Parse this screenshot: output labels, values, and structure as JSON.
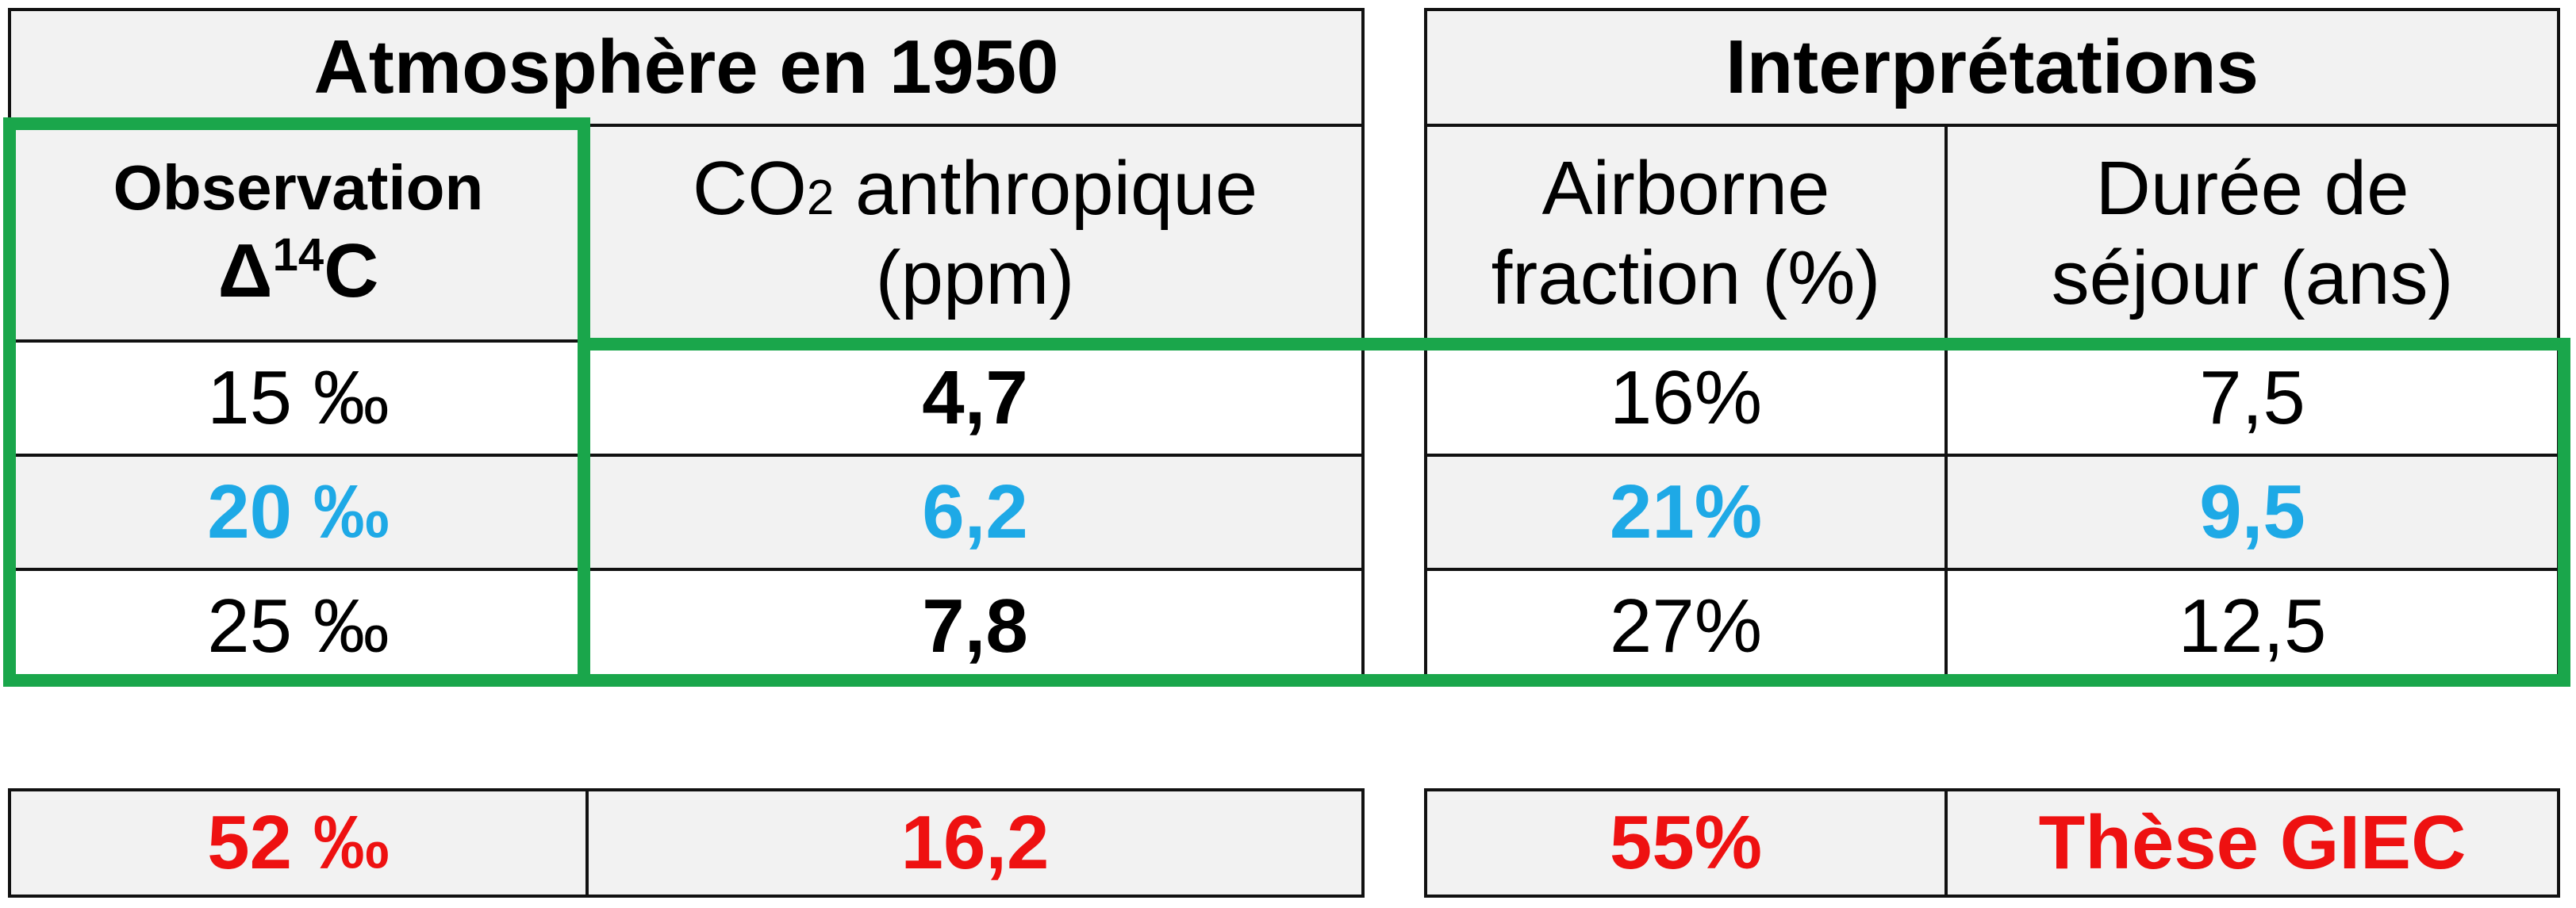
{
  "left_table": {
    "title": "Atmosphère en 1950",
    "col1_header_line1": "Observation",
    "col1_header_delta": "Δ",
    "col1_header_sup": "14",
    "col1_header_c": "C",
    "col2_header_co": "CO",
    "col2_header_sub": "2",
    "col2_header_rest": " anthropique",
    "col2_header_line2": "(ppm)",
    "rows": [
      {
        "obs": "15 ‰",
        "co2": "4,7"
      },
      {
        "obs": "20 ‰",
        "co2": "6,2"
      },
      {
        "obs": "25 ‰",
        "co2": "7,8"
      }
    ]
  },
  "right_table": {
    "title": "Interprétations",
    "col1_header_line1": "Airborne",
    "col1_header_line2": "fraction (%)",
    "col2_header_line1": "Durée de",
    "col2_header_line2": "séjour (ans)",
    "rows": [
      {
        "fraction": "16%",
        "duree": "7,5"
      },
      {
        "fraction": "21%",
        "duree": "9,5"
      },
      {
        "fraction": "27%",
        "duree": "12,5"
      }
    ]
  },
  "bottom_row": {
    "obs": "52 ‰",
    "co2": "16,2",
    "fraction": "55%",
    "these": "Thèse GIEC"
  },
  "colors": {
    "highlight_blue": "#1ea9e6",
    "highlight_red": "#ee1111",
    "frame_green": "#1aa64b",
    "header_grey": "#f2f2f2"
  }
}
